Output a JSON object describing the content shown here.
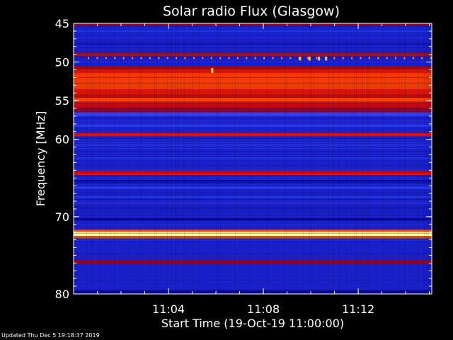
{
  "chart_data": {
    "type": "heatmap",
    "title": "Solar radio Flux (Glasgow)",
    "xlabel": "Start Time (19-Oct-19 11:00:00)",
    "ylabel": "Frequency [MHz]",
    "x_range_min": [
      0,
      15.1
    ],
    "y_range_mhz": [
      45,
      80
    ],
    "y_inverted": true,
    "y_ticks": [
      {
        "value": 45,
        "label": "45"
      },
      {
        "value": 50,
        "label": "50"
      },
      {
        "value": 55,
        "label": "55"
      },
      {
        "value": 60,
        "label": "60"
      },
      {
        "value": 70,
        "label": "70"
      },
      {
        "value": 80,
        "label": "80"
      }
    ],
    "x_ticks": [
      {
        "value": 4,
        "label": "11:04"
      },
      {
        "value": 8,
        "label": "11:08"
      },
      {
        "value": 12,
        "label": "11:12"
      }
    ],
    "background_color": "#1a20c8",
    "emission_bands": [
      {
        "from": 45.1,
        "to": 45.3,
        "color": "#a00018"
      },
      {
        "from": 45.9,
        "to": 46.2,
        "color": "#1838e8"
      },
      {
        "from": 47.6,
        "to": 47.8,
        "color": "#0c10a0"
      },
      {
        "from": 48.8,
        "to": 49.2,
        "color": "#b01010"
      },
      {
        "from": 50.5,
        "to": 50.9,
        "color": "#a00010"
      },
      {
        "from": 50.9,
        "to": 54.2,
        "color": "#d81408"
      },
      {
        "from": 51.4,
        "to": 53.5,
        "color": "#f03a00"
      },
      {
        "from": 54.2,
        "to": 54.8,
        "color": "#b01010"
      },
      {
        "from": 54.6,
        "to": 55.2,
        "color": "#ff4000"
      },
      {
        "from": 55.2,
        "to": 55.9,
        "color": "#c80810"
      },
      {
        "from": 55.9,
        "to": 56.5,
        "color": "#8a0020"
      },
      {
        "from": 56.5,
        "to": 57.0,
        "color": "#3040f0"
      },
      {
        "from": 58.0,
        "to": 58.4,
        "color": "#2838e8"
      },
      {
        "from": 59.2,
        "to": 59.6,
        "color": "#e01010"
      },
      {
        "from": 60.6,
        "to": 60.9,
        "color": "#2030d8"
      },
      {
        "from": 62.3,
        "to": 62.6,
        "color": "#2232e0"
      },
      {
        "from": 64.1,
        "to": 64.6,
        "color": "#e01010"
      },
      {
        "from": 65.2,
        "to": 65.5,
        "color": "#0c0ca0"
      },
      {
        "from": 66.0,
        "to": 66.4,
        "color": "#2a3cf0"
      },
      {
        "from": 67.3,
        "to": 67.6,
        "color": "#2030d8"
      },
      {
        "from": 70.2,
        "to": 70.5,
        "color": "#0a0890"
      },
      {
        "from": 71.7,
        "to": 72.0,
        "color": "#ff6000"
      },
      {
        "from": 72.0,
        "to": 72.5,
        "color": "#fffab0"
      },
      {
        "from": 72.5,
        "to": 72.8,
        "color": "#ff6000"
      },
      {
        "from": 75.6,
        "to": 76.1,
        "color": "#9a0018"
      },
      {
        "from": 79.5,
        "to": 80.0,
        "color": "#0a0890"
      }
    ],
    "bursts": [
      {
        "time": 5.8,
        "from": 50.8,
        "to": 51.4,
        "color": "#ffe040"
      },
      {
        "time": 9.5,
        "from": 49.3,
        "to": 49.8,
        "color": "#ffc040"
      },
      {
        "time": 9.9,
        "from": 49.3,
        "to": 49.8,
        "color": "#ffc040"
      },
      {
        "time": 10.3,
        "from": 49.3,
        "to": 49.8,
        "color": "#ffc040"
      },
      {
        "time": 10.6,
        "from": 49.3,
        "to": 49.8,
        "color": "#ffc040"
      }
    ]
  },
  "footer": {
    "updated": "Updated Thu Dec  5 19:18:37 2019"
  }
}
